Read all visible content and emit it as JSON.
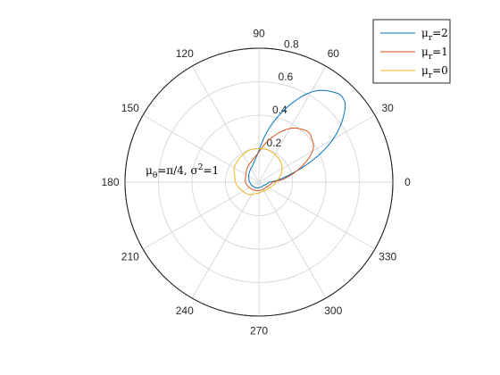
{
  "chart_data": {
    "type": "polar-line",
    "theta_ticks": [
      "0",
      "30",
      "60",
      "90",
      "120",
      "150",
      "180",
      "210",
      "240",
      "270",
      "300",
      "330"
    ],
    "r_ticks": [
      "0.2",
      "0.4",
      "0.6",
      "0.8"
    ],
    "rlim": [
      0,
      0.8
    ],
    "grid": true,
    "legend_position": "top-right",
    "annotation": {
      "prefix": "μ",
      "sub1": "θ",
      "mid": "=π/4, σ",
      "sup": "2",
      "suffix": "=1"
    },
    "series": [
      {
        "name": "μr=2",
        "name_base": "μ",
        "name_sub": "r",
        "name_suffix": "=2",
        "color": "#0072BD",
        "points": [
          [
            0,
            0.06
          ],
          [
            15,
            0.21
          ],
          [
            30,
            0.51
          ],
          [
            40,
            0.67
          ],
          [
            45,
            0.71
          ],
          [
            50,
            0.7
          ],
          [
            60,
            0.62
          ],
          [
            75,
            0.39
          ],
          [
            90,
            0.19
          ],
          [
            105,
            0.12
          ],
          [
            120,
            0.095
          ],
          [
            150,
            0.07
          ],
          [
            180,
            0.055
          ],
          [
            210,
            0.045
          ],
          [
            240,
            0.038
          ],
          [
            270,
            0.033
          ],
          [
            300,
            0.032
          ],
          [
            330,
            0.036
          ],
          [
            360,
            0.06
          ]
        ]
      },
      {
        "name": "μr=1",
        "name_base": "μ",
        "name_sub": "r",
        "name_suffix": "=1",
        "color": "#D95319",
        "points": [
          [
            0,
            0.08
          ],
          [
            15,
            0.22
          ],
          [
            30,
            0.37
          ],
          [
            40,
            0.41
          ],
          [
            45,
            0.42
          ],
          [
            50,
            0.41
          ],
          [
            60,
            0.37
          ],
          [
            75,
            0.27
          ],
          [
            90,
            0.18
          ],
          [
            105,
            0.14
          ],
          [
            120,
            0.12
          ],
          [
            150,
            0.09
          ],
          [
            180,
            0.08
          ],
          [
            210,
            0.065
          ],
          [
            240,
            0.055
          ],
          [
            270,
            0.05
          ],
          [
            300,
            0.05
          ],
          [
            330,
            0.055
          ],
          [
            360,
            0.08
          ]
        ]
      },
      {
        "name": "μr=0",
        "name_base": "μ",
        "name_sub": "r",
        "name_suffix": "=0",
        "color": "#EDB120",
        "points": [
          [
            0,
            0.1
          ],
          [
            15,
            0.13
          ],
          [
            30,
            0.16
          ],
          [
            45,
            0.18
          ],
          [
            60,
            0.19
          ],
          [
            75,
            0.2
          ],
          [
            90,
            0.2
          ],
          [
            105,
            0.2
          ],
          [
            120,
            0.19
          ],
          [
            135,
            0.18
          ],
          [
            150,
            0.17
          ],
          [
            165,
            0.15
          ],
          [
            180,
            0.14
          ],
          [
            195,
            0.125
          ],
          [
            210,
            0.11
          ],
          [
            225,
            0.1
          ],
          [
            240,
            0.085
          ],
          [
            255,
            0.07
          ],
          [
            270,
            0.065
          ],
          [
            285,
            0.06
          ],
          [
            300,
            0.06
          ],
          [
            315,
            0.065
          ],
          [
            330,
            0.07
          ],
          [
            345,
            0.085
          ],
          [
            360,
            0.1
          ]
        ]
      }
    ]
  }
}
